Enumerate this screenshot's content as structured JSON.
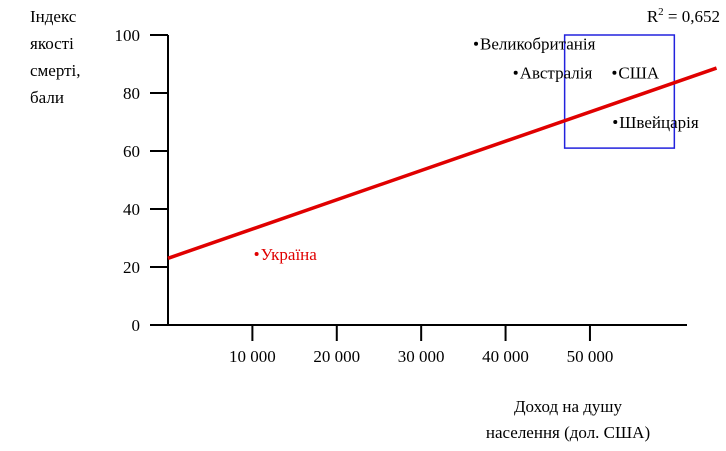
{
  "chart_data": {
    "type": "scatter",
    "y_label_lines": [
      "Індекс",
      "якості",
      "смерті,",
      "бали"
    ],
    "x_label_lines": [
      "Доход на душу",
      "населення (дол. США)"
    ],
    "r2_label": {
      "base": "R",
      "sup": "2",
      "rest": " = 0,652"
    },
    "xlim": [
      0,
      61500
    ],
    "ylim": [
      0,
      100
    ],
    "xticks": [
      {
        "value": 10000,
        "label": "10 000"
      },
      {
        "value": 20000,
        "label": "20 000"
      },
      {
        "value": 30000,
        "label": "30 000"
      },
      {
        "value": 40000,
        "label": "40 000"
      },
      {
        "value": 50000,
        "label": "50 000"
      }
    ],
    "yticks": [
      0,
      20,
      40,
      60,
      80,
      100
    ],
    "series": [
      {
        "names": [
          "Україна",
          "Великобританія",
          "Австралія",
          "США",
          "Швейцарія"
        ],
        "x": [
          10500,
          36500,
          41200,
          52900,
          53000
        ],
        "values": [
          24.5,
          97,
          87,
          87,
          70
        ],
        "colors": [
          "#e00000",
          "#000000",
          "#000000",
          "#000000",
          "#000000"
        ]
      }
    ],
    "trend": {
      "x": [
        0,
        65000
      ],
      "values": [
        23,
        88.6
      ],
      "color": "#e00000"
    },
    "highlight_box": {
      "x": [
        47000,
        60000
      ],
      "values": [
        61,
        100
      ],
      "color": "#2222dd"
    }
  }
}
